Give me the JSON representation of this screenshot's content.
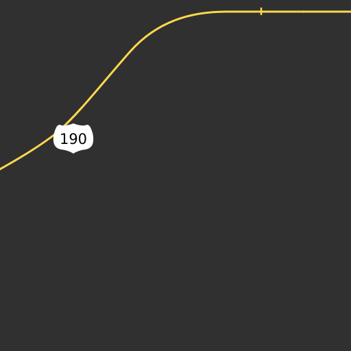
{
  "map": {
    "background_color": "#303030",
    "road_color": "#ffd84d",
    "route_shield": {
      "type": "us-highway",
      "route_number": "190",
      "shield_fill": "#ffffff",
      "text_color": "#000000"
    }
  }
}
